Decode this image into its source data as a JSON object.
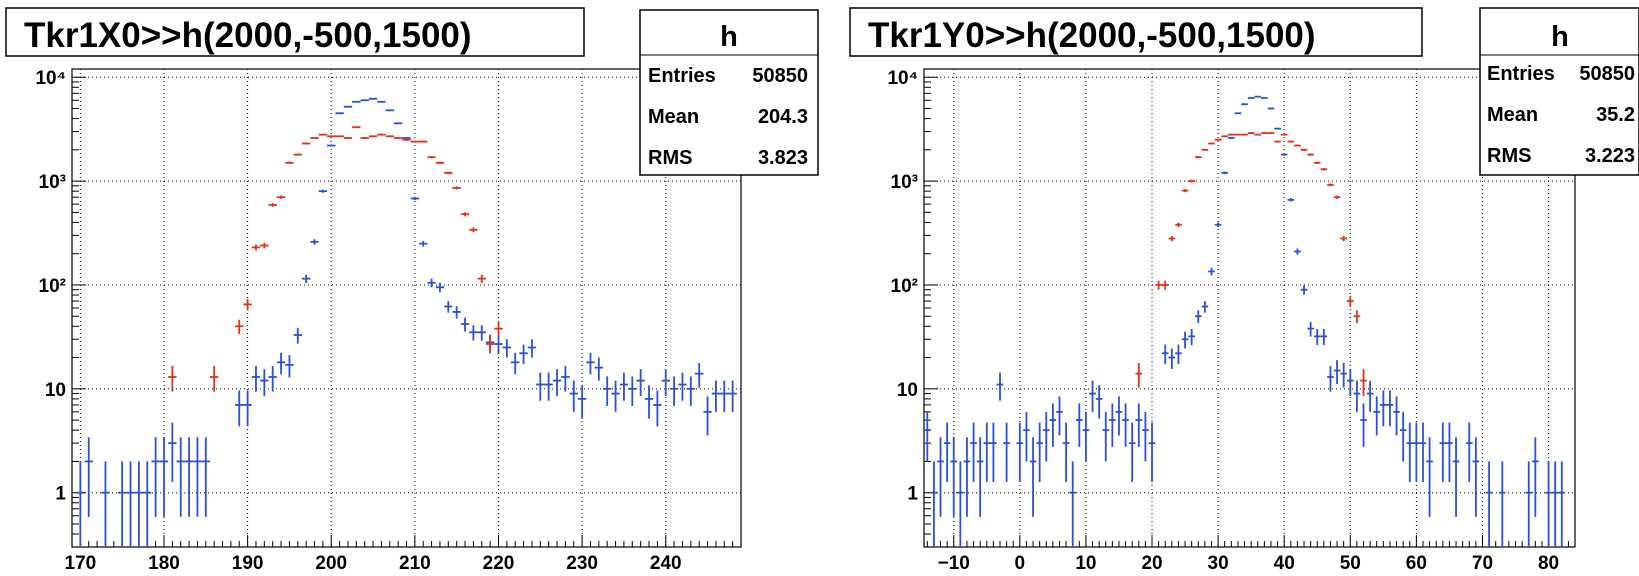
{
  "panels": [
    {
      "title": "Tkr1X0>>h(2000,-500,1500)",
      "stats": {
        "name": "h",
        "rows": [
          {
            "label": "Entries",
            "value": "50850"
          },
          {
            "label": "Mean",
            "value": "204.3"
          },
          {
            "label": "RMS",
            "value": "3.823"
          }
        ]
      }
    },
    {
      "title": "Tkr1Y0>>h(2000,-500,1500)",
      "stats": {
        "name": "h",
        "rows": [
          {
            "label": "Entries",
            "value": "50850"
          },
          {
            "label": "Mean",
            "value": "35.2"
          },
          {
            "label": "RMS",
            "value": "3.223"
          }
        ]
      }
    }
  ],
  "chart_data": [
    {
      "type": "scatter",
      "title": "Tkr1X0>>h(2000,-500,1500)",
      "xlim": [
        169,
        249
      ],
      "ylim": [
        0.3,
        12000
      ],
      "yscale": "log",
      "grid": true,
      "x_ticks": [
        170,
        180,
        190,
        200,
        210,
        220,
        230,
        240
      ],
      "y_ticks": [
        {
          "v": 1,
          "label": "1"
        },
        {
          "v": 10,
          "label": "10"
        },
        {
          "v": 100,
          "label": "10²"
        },
        {
          "v": 1000,
          "label": "10³"
        },
        {
          "v": 10000,
          "label": "10⁴"
        }
      ],
      "series": [
        {
          "color": "#2b4fd8",
          "points": [
            [
              170,
              1
            ],
            [
              171,
              2
            ],
            [
              173,
              1
            ],
            [
              175,
              1
            ],
            [
              176,
              1
            ],
            [
              177,
              1
            ],
            [
              178,
              1
            ],
            [
              179,
              2
            ],
            [
              180,
              2
            ],
            [
              181,
              3
            ],
            [
              182,
              2
            ],
            [
              183,
              2
            ],
            [
              184,
              2
            ],
            [
              185,
              2
            ],
            [
              189,
              7
            ],
            [
              190,
              7
            ],
            [
              191,
              13
            ],
            [
              192,
              12
            ],
            [
              193,
              13
            ],
            [
              194,
              18
            ],
            [
              195,
              17
            ],
            [
              196,
              33
            ],
            [
              197,
              115
            ],
            [
              198,
              260
            ],
            [
              199,
              800
            ],
            [
              200,
              2200
            ],
            [
              201,
              4500
            ],
            [
              202,
              5200
            ],
            [
              203,
              5800
            ],
            [
              204,
              6000
            ],
            [
              205,
              6200
            ],
            [
              206,
              5800
            ],
            [
              207,
              4800
            ],
            [
              208,
              3600
            ],
            [
              209,
              2600
            ],
            [
              210,
              680
            ],
            [
              211,
              250
            ],
            [
              212,
              105
            ],
            [
              213,
              95
            ],
            [
              214,
              62
            ],
            [
              215,
              55
            ],
            [
              216,
              42
            ],
            [
              217,
              35
            ],
            [
              218,
              35
            ],
            [
              219,
              28
            ],
            [
              220,
              27
            ],
            [
              221,
              25
            ],
            [
              222,
              18
            ],
            [
              223,
              22
            ],
            [
              224,
              25
            ],
            [
              225,
              11
            ],
            [
              226,
              11
            ],
            [
              227,
              12
            ],
            [
              228,
              13
            ],
            [
              229,
              9
            ],
            [
              230,
              8
            ],
            [
              231,
              18
            ],
            [
              232,
              16
            ],
            [
              233,
              10
            ],
            [
              234,
              9
            ],
            [
              235,
              11
            ],
            [
              236,
              10
            ],
            [
              237,
              12
            ],
            [
              238,
              8
            ],
            [
              239,
              7
            ],
            [
              240,
              12
            ],
            [
              241,
              10
            ],
            [
              242,
              11
            ],
            [
              243,
              10
            ],
            [
              244,
              14
            ],
            [
              245,
              6
            ],
            [
              246,
              9
            ],
            [
              247,
              9
            ],
            [
              248,
              9
            ]
          ]
        },
        {
          "color": "#e0311b",
          "points": [
            [
              181,
              13
            ],
            [
              186,
              13
            ],
            [
              189,
              40
            ],
            [
              190,
              65
            ],
            [
              191,
              230
            ],
            [
              192,
              240
            ],
            [
              193,
              590
            ],
            [
              194,
              700
            ],
            [
              195,
              1500
            ],
            [
              196,
              1800
            ],
            [
              197,
              2300
            ],
            [
              198,
              2600
            ],
            [
              199,
              2800
            ],
            [
              200,
              2700
            ],
            [
              201,
              2700
            ],
            [
              202,
              2600
            ],
            [
              203,
              3300
            ],
            [
              204,
              2600
            ],
            [
              205,
              2700
            ],
            [
              206,
              2800
            ],
            [
              207,
              2700
            ],
            [
              208,
              2600
            ],
            [
              209,
              2500
            ],
            [
              210,
              2400
            ],
            [
              211,
              2400
            ],
            [
              212,
              1700
            ],
            [
              213,
              1500
            ],
            [
              214,
              1200
            ],
            [
              215,
              860
            ],
            [
              216,
              480
            ],
            [
              217,
              340
            ],
            [
              218,
              115
            ],
            [
              219,
              27
            ],
            [
              220,
              38
            ]
          ]
        }
      ]
    },
    {
      "type": "scatter",
      "title": "Tkr1Y0>>h(2000,-500,1500)",
      "xlim": [
        -14.5,
        84
      ],
      "ylim": [
        0.3,
        12000
      ],
      "yscale": "log",
      "grid": true,
      "x_ticks": [
        -10,
        0,
        10,
        20,
        30,
        40,
        50,
        60,
        70,
        80
      ],
      "y_ticks": [
        {
          "v": 1,
          "label": "1"
        },
        {
          "v": 10,
          "label": "10"
        },
        {
          "v": 100,
          "label": "10²"
        },
        {
          "v": 1000,
          "label": "10³"
        },
        {
          "v": 10000,
          "label": "10⁴"
        }
      ],
      "series": [
        {
          "color": "#2b4fd8",
          "points": [
            [
              -14,
              4
            ],
            [
              -13,
              1
            ],
            [
              -12,
              2
            ],
            [
              -11,
              3
            ],
            [
              -10,
              2
            ],
            [
              -9,
              1
            ],
            [
              -8,
              2
            ],
            [
              -7,
              3
            ],
            [
              -6,
              2
            ],
            [
              -5,
              3
            ],
            [
              -4,
              3
            ],
            [
              -3,
              11
            ],
            [
              -2,
              3
            ],
            [
              0,
              3
            ],
            [
              1,
              4
            ],
            [
              2,
              2
            ],
            [
              3,
              3
            ],
            [
              4,
              4
            ],
            [
              5,
              5
            ],
            [
              6,
              6
            ],
            [
              7,
              3
            ],
            [
              8,
              1
            ],
            [
              9,
              5
            ],
            [
              10,
              4
            ],
            [
              11,
              9
            ],
            [
              12,
              8
            ],
            [
              13,
              4
            ],
            [
              14,
              5
            ],
            [
              15,
              6
            ],
            [
              16,
              5
            ],
            [
              17,
              3
            ],
            [
              18,
              5
            ],
            [
              19,
              4
            ],
            [
              20,
              3
            ],
            [
              22,
              22
            ],
            [
              23,
              20
            ],
            [
              24,
              22
            ],
            [
              25,
              30
            ],
            [
              26,
              32
            ],
            [
              27,
              50
            ],
            [
              28,
              62
            ],
            [
              29,
              135
            ],
            [
              30,
              380
            ],
            [
              31,
              1200
            ],
            [
              32,
              2600
            ],
            [
              33,
              4500
            ],
            [
              34,
              5500
            ],
            [
              35,
              6300
            ],
            [
              36,
              6500
            ],
            [
              37,
              6300
            ],
            [
              38,
              5000
            ],
            [
              39,
              3200
            ],
            [
              40,
              1800
            ],
            [
              41,
              660
            ],
            [
              42,
              210
            ],
            [
              43,
              90
            ],
            [
              44,
              38
            ],
            [
              45,
              32
            ],
            [
              46,
              32
            ],
            [
              47,
              13
            ],
            [
              48,
              15
            ],
            [
              49,
              14
            ],
            [
              50,
              12
            ],
            [
              51,
              9
            ],
            [
              52,
              5
            ],
            [
              53,
              9
            ],
            [
              54,
              6
            ],
            [
              55,
              7
            ],
            [
              56,
              7
            ],
            [
              57,
              6
            ],
            [
              58,
              4
            ],
            [
              59,
              3
            ],
            [
              60,
              3
            ],
            [
              61,
              3
            ],
            [
              62,
              2
            ],
            [
              64,
              3
            ],
            [
              65,
              3
            ],
            [
              66,
              2
            ],
            [
              68,
              3
            ],
            [
              69,
              2
            ],
            [
              71,
              1
            ],
            [
              73,
              1
            ],
            [
              77,
              1
            ],
            [
              78,
              2
            ],
            [
              80,
              1
            ],
            [
              81,
              1
            ],
            [
              82,
              1
            ]
          ]
        },
        {
          "color": "#e0311b",
          "points": [
            [
              18,
              14
            ],
            [
              21,
              100
            ],
            [
              22,
              100
            ],
            [
              23,
              280
            ],
            [
              24,
              380
            ],
            [
              25,
              810
            ],
            [
              26,
              1000
            ],
            [
              27,
              1700
            ],
            [
              28,
              2000
            ],
            [
              29,
              2300
            ],
            [
              30,
              2500
            ],
            [
              31,
              2700
            ],
            [
              32,
              2800
            ],
            [
              33,
              2800
            ],
            [
              34,
              2800
            ],
            [
              35,
              2900
            ],
            [
              36,
              2800
            ],
            [
              37,
              2900
            ],
            [
              38,
              2900
            ],
            [
              39,
              2400
            ],
            [
              40,
              2800
            ],
            [
              41,
              2400
            ],
            [
              42,
              2200
            ],
            [
              43,
              2000
            ],
            [
              44,
              1800
            ],
            [
              45,
              1500
            ],
            [
              46,
              1300
            ],
            [
              47,
              920
            ],
            [
              48,
              700
            ],
            [
              49,
              280
            ],
            [
              50,
              70
            ],
            [
              51,
              50
            ],
            [
              52,
              12
            ]
          ]
        }
      ]
    }
  ]
}
